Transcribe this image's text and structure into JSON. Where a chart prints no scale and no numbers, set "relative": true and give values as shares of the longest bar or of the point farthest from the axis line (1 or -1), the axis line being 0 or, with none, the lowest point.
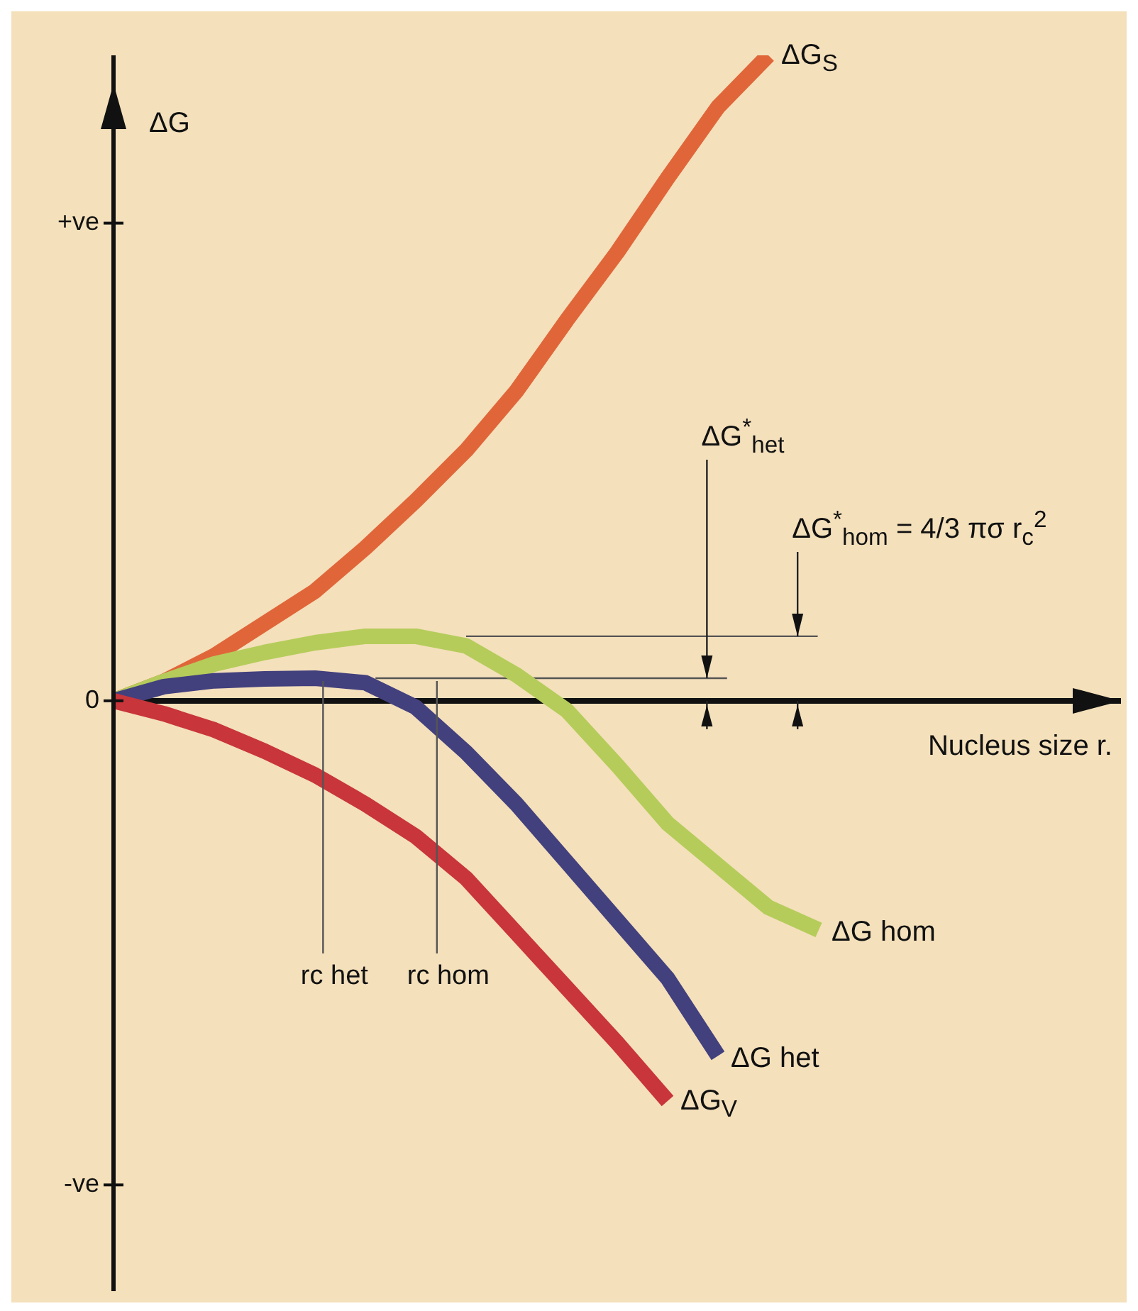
{
  "chart_data": {
    "type": "line",
    "relative": true,
    "xlabel": "Nucleus size r.",
    "ylabel": "ΔG",
    "marker": "none",
    "categories": [
      null,
      null,
      null,
      null,
      null,
      null,
      null,
      null,
      null,
      null,
      null,
      null,
      null,
      null,
      null,
      null,
      null,
      null,
      null,
      null,
      null
    ],
    "series": [
      {
        "name": "ΔG$_{S}$",
        "color": "#e0663a",
        "values": [
          0,
          0.03,
          0.07,
          0.12,
          0.17,
          0.237,
          0.31,
          0.388,
          0.48,
          0.59,
          0.695,
          0.81,
          0.92,
          1.0,
          null,
          null,
          null,
          null,
          null,
          null,
          null
        ]
      },
      {
        "name": "ΔG hom",
        "color": "#b5cc5a",
        "values": [
          0,
          0.03,
          0.057,
          0.075,
          0.09,
          0.1,
          0.1,
          0.085,
          0.04,
          -0.015,
          -0.1,
          -0.19,
          -0.255,
          -0.32,
          -0.355,
          null,
          null,
          null,
          null,
          null,
          null
        ]
      },
      {
        "name": "ΔG het",
        "color": "#43407e",
        "values": [
          0,
          0.022,
          0.031,
          0.034,
          0.035,
          0.028,
          -0.01,
          -0.08,
          -0.16,
          -0.25,
          -0.34,
          -0.43,
          -0.55,
          null,
          null,
          null,
          null,
          null,
          null,
          null,
          null
        ]
      },
      {
        "name": "ΔG$_{V}$",
        "color": "#c8353a",
        "values": [
          0,
          -0.02,
          -0.045,
          -0.078,
          -0.115,
          -0.16,
          -0.21,
          -0.275,
          -0.36,
          -0.445,
          -0.53,
          -0.62,
          null,
          null,
          null,
          null,
          null,
          null,
          null,
          null,
          null
        ]
      }
    ],
    "ref_lines": [
      {
        "axis": "y",
        "value": 0.035,
        "color": "#555555"
      },
      {
        "axis": "y",
        "value": 0.1,
        "color": "#555555"
      }
    ],
    "annotations": [
      "+ve",
      "0",
      "-ve",
      "rc het",
      "rc hom",
      "ΔG$^{*}$$_{het}$",
      "ΔG$^{*}$$_{hom}$ = 4/3 πσ r$_{c}$$^{2}$"
    ]
  }
}
